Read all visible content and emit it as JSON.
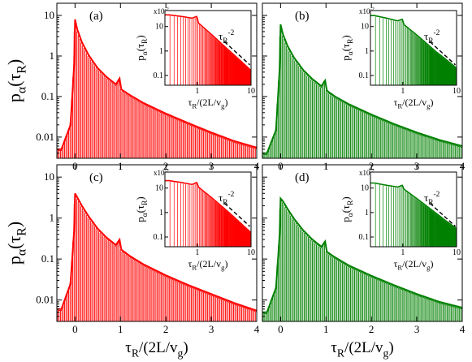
{
  "chart_data": [
    {
      "type": "bar",
      "panel_label": "(a)",
      "color": "#ff0000",
      "ylabel": "p_α(τ_R)",
      "xlabel": "",
      "xlim": [
        -0.4,
        4
      ],
      "ylim": [
        0.003,
        20
      ],
      "yscale": "log",
      "xticks": [
        "0",
        "1",
        "2",
        "3",
        "4"
      ],
      "yticks": [
        "0.01",
        "0.1",
        "1",
        "10"
      ],
      "curve": [
        [
          -0.3,
          0.005
        ],
        [
          -0.1,
          0.02
        ],
        [
          -0.02,
          0.6
        ],
        [
          0.0,
          8.0
        ],
        [
          0.05,
          4.5
        ],
        [
          0.15,
          2.2
        ],
        [
          0.3,
          1.05
        ],
        [
          0.5,
          0.5
        ],
        [
          0.7,
          0.3
        ],
        [
          0.9,
          0.2
        ],
        [
          0.98,
          0.28
        ],
        [
          1.02,
          0.15
        ],
        [
          1.2,
          0.11
        ],
        [
          1.5,
          0.07
        ],
        [
          2.0,
          0.038
        ],
        [
          2.5,
          0.022
        ],
        [
          3.0,
          0.013
        ],
        [
          3.5,
          0.008
        ],
        [
          4.0,
          0.0055
        ]
      ],
      "inset": {
        "xlabel": "τ_R/(2L/v_g)",
        "ylabel": "p_α(τ_R)",
        "multiplier": "x10^-2",
        "xscale": "log",
        "yscale": "log",
        "xlim": [
          0.25,
          10
        ],
        "ylim": [
          0.04,
          45
        ],
        "xticks": [
          "1",
          "10"
        ],
        "yticks": [
          "0.1",
          "1",
          "10"
        ],
        "slope_label": "τ_R^-2",
        "curve": [
          [
            0.3,
            30
          ],
          [
            0.5,
            26
          ],
          [
            0.8,
            22
          ],
          [
            0.98,
            26
          ],
          [
            1.05,
            14
          ],
          [
            2,
            4
          ],
          [
            4,
            1
          ],
          [
            6,
            0.45
          ],
          [
            10,
            0.16
          ]
        ]
      }
    },
    {
      "type": "bar",
      "panel_label": "(b)",
      "color": "#008000",
      "ylabel": "",
      "xlabel": "",
      "xlim": [
        -0.4,
        4
      ],
      "ylim": [
        0.003,
        20
      ],
      "yscale": "log",
      "xticks": [
        "0",
        "1",
        "2",
        "3",
        "4"
      ],
      "yticks": [],
      "curve": [
        [
          -0.3,
          0.004
        ],
        [
          -0.1,
          0.015
        ],
        [
          -0.02,
          0.5
        ],
        [
          0.0,
          6.0
        ],
        [
          0.05,
          3.5
        ],
        [
          0.15,
          1.8
        ],
        [
          0.3,
          0.9
        ],
        [
          0.5,
          0.45
        ],
        [
          0.7,
          0.27
        ],
        [
          0.9,
          0.18
        ],
        [
          0.98,
          0.25
        ],
        [
          1.02,
          0.14
        ],
        [
          1.2,
          0.1
        ],
        [
          1.5,
          0.065
        ],
        [
          2.0,
          0.036
        ],
        [
          2.5,
          0.021
        ],
        [
          3.0,
          0.013
        ],
        [
          3.5,
          0.0085
        ],
        [
          4.0,
          0.006
        ]
      ],
      "inset": {
        "xlabel": "τ_R/(2L/v_g)",
        "ylabel": "p_α(τ_R)",
        "multiplier": "x10^-2",
        "xscale": "log",
        "yscale": "log",
        "xlim": [
          0.25,
          10
        ],
        "ylim": [
          0.04,
          45
        ],
        "xticks": [
          "1",
          "10"
        ],
        "yticks": [
          "0.1",
          "1",
          "10"
        ],
        "slope_label": "τ_R^-2",
        "curve": [
          [
            0.3,
            28
          ],
          [
            0.5,
            22
          ],
          [
            0.8,
            17
          ],
          [
            0.98,
            20
          ],
          [
            1.05,
            12
          ],
          [
            2,
            3.8
          ],
          [
            4,
            1.0
          ],
          [
            6,
            0.5
          ],
          [
            10,
            0.2
          ]
        ]
      }
    },
    {
      "type": "bar",
      "panel_label": "(c)",
      "color": "#ff0000",
      "ylabel": "p_α(τ_R)",
      "xlabel": "τ_R/(2L/v_g)",
      "xlim": [
        -0.4,
        4
      ],
      "ylim": [
        0.003,
        20
      ],
      "yscale": "log",
      "xticks": [
        "0",
        "1",
        "2",
        "3",
        "4"
      ],
      "yticks": [
        "0.01",
        "0.1",
        "1",
        "10"
      ],
      "curve": [
        [
          -0.3,
          0.006
        ],
        [
          -0.1,
          0.025
        ],
        [
          -0.02,
          0.5
        ],
        [
          0.0,
          4.0
        ],
        [
          0.05,
          3.2
        ],
        [
          0.15,
          2.0
        ],
        [
          0.3,
          1.1
        ],
        [
          0.5,
          0.55
        ],
        [
          0.7,
          0.33
        ],
        [
          0.9,
          0.22
        ],
        [
          0.98,
          0.3
        ],
        [
          1.02,
          0.17
        ],
        [
          1.2,
          0.12
        ],
        [
          1.5,
          0.075
        ],
        [
          2.0,
          0.04
        ],
        [
          2.5,
          0.023
        ],
        [
          3.0,
          0.014
        ],
        [
          3.5,
          0.0085
        ],
        [
          4.0,
          0.0055
        ]
      ],
      "inset": {
        "xlabel": "τ_R/(2L/v_g)",
        "ylabel": "p_α(τ_R)",
        "multiplier": "x10^-2",
        "xscale": "log",
        "yscale": "log",
        "xlim": [
          0.25,
          10
        ],
        "ylim": [
          0.04,
          45
        ],
        "xticks": [
          "1",
          "10"
        ],
        "yticks": [
          "0.1",
          "1",
          "10"
        ],
        "slope_label": "τ_R^-2",
        "curve": [
          [
            0.3,
            20
          ],
          [
            0.5,
            17
          ],
          [
            0.8,
            14
          ],
          [
            0.98,
            17
          ],
          [
            1.05,
            11
          ],
          [
            2,
            3.5
          ],
          [
            4,
            0.95
          ],
          [
            6,
            0.42
          ],
          [
            10,
            0.15
          ]
        ]
      }
    },
    {
      "type": "bar",
      "panel_label": "(d)",
      "color": "#008000",
      "ylabel": "",
      "xlabel": "τ_R/(2L/v_g)",
      "xlim": [
        -0.4,
        4
      ],
      "ylim": [
        0.003,
        20
      ],
      "yscale": "log",
      "xticks": [
        "0",
        "1",
        "2",
        "3",
        "4"
      ],
      "yticks": [],
      "curve": [
        [
          -0.3,
          0.005
        ],
        [
          -0.1,
          0.02
        ],
        [
          -0.02,
          0.4
        ],
        [
          0.0,
          3.0
        ],
        [
          0.05,
          2.6
        ],
        [
          0.15,
          1.7
        ],
        [
          0.3,
          0.95
        ],
        [
          0.5,
          0.5
        ],
        [
          0.7,
          0.3
        ],
        [
          0.9,
          0.2
        ],
        [
          0.98,
          0.27
        ],
        [
          1.02,
          0.15
        ],
        [
          1.2,
          0.11
        ],
        [
          1.5,
          0.07
        ],
        [
          2.0,
          0.039
        ],
        [
          2.5,
          0.023
        ],
        [
          3.0,
          0.014
        ],
        [
          3.5,
          0.009
        ],
        [
          4.0,
          0.0065
        ]
      ],
      "inset": {
        "xlabel": "τ_R/(2L/v_g)",
        "ylabel": "p_α(τ_R)",
        "multiplier": "x10^-2",
        "xscale": "log",
        "yscale": "log",
        "xlim": [
          0.25,
          10
        ],
        "ylim": [
          0.04,
          45
        ],
        "xticks": [
          "1",
          "10"
        ],
        "yticks": [
          "0.1",
          "1",
          "10"
        ],
        "slope_label": "τ_R^-2",
        "curve": [
          [
            0.3,
            16
          ],
          [
            0.5,
            13
          ],
          [
            0.8,
            11
          ],
          [
            0.98,
            13
          ],
          [
            1.05,
            9
          ],
          [
            2,
            3.2
          ],
          [
            4,
            1.0
          ],
          [
            6,
            0.5
          ],
          [
            10,
            0.22
          ]
        ]
      }
    }
  ]
}
